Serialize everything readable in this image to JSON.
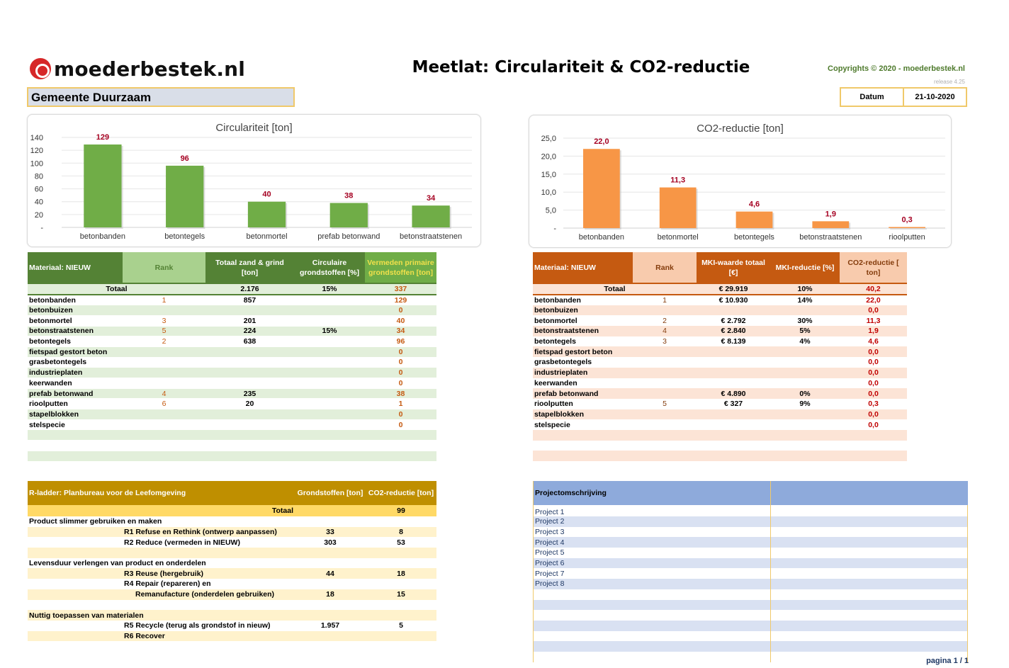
{
  "header": {
    "logo_text": "moederbestek.nl",
    "title": "Meetlat: Circulariteit & CO2-reductie",
    "copyright": "Copyrights © 2020 - moederbestek.nl",
    "release": "release 4.25",
    "gemeente": "Gemeente Duurzaam",
    "datum_label": "Datum",
    "datum_value": "21-10-2020"
  },
  "chart_data": [
    {
      "type": "bar",
      "title": "Circulariteit  [ton]",
      "categories": [
        "betonbanden",
        "betontegels",
        "betonmortel",
        "prefab betonwand",
        "betonstraatstenen"
      ],
      "values": [
        129,
        96,
        40,
        38,
        34
      ],
      "data_labels": [
        "129",
        "96",
        "40",
        "38",
        "34"
      ],
      "ylim": [
        0,
        140
      ],
      "yticks": [
        "-",
        "20",
        "40",
        "60",
        "80",
        "100",
        "120",
        "140"
      ],
      "bar_color": "#70ad47",
      "grid": true
    },
    {
      "type": "bar",
      "title": "CO2-reductie  [ton]",
      "categories": [
        "betonbanden",
        "betonmortel",
        "betontegels",
        "betonstraatstenen",
        "rioolputten"
      ],
      "values": [
        22.0,
        11.3,
        4.6,
        1.9,
        0.3
      ],
      "data_labels": [
        "22,0",
        "11,3",
        "4,6",
        "1,9",
        "0,3"
      ],
      "ylim": [
        0,
        25
      ],
      "yticks": [
        "-",
        "5,0",
        "10,0",
        "15,0",
        "20,0",
        "25,0"
      ],
      "bar_color": "#f79646",
      "grid": true
    }
  ],
  "circ_table": {
    "headers": [
      "Materiaal: NIEUW",
      "Rank",
      "Totaal zand & grind [ton]",
      "Circulaire grondstoffen [%]",
      "Vermeden primaire grondstoffen [ton]"
    ],
    "total": {
      "label": "Totaal",
      "zand": "2.176",
      "circ": "15%",
      "vermeden": "337"
    },
    "rows": [
      {
        "name": "betonbanden",
        "rank": "1",
        "zand": "857",
        "circ": "",
        "vermeden": "129"
      },
      {
        "name": "betonbuizen",
        "rank": "",
        "zand": "",
        "circ": "",
        "vermeden": "0"
      },
      {
        "name": "betonmortel",
        "rank": "3",
        "zand": "201",
        "circ": "",
        "vermeden": "40"
      },
      {
        "name": "betonstraatstenen",
        "rank": "5",
        "zand": "224",
        "circ": "15%",
        "vermeden": "34"
      },
      {
        "name": "betontegels",
        "rank": "2",
        "zand": "638",
        "circ": "",
        "vermeden": "96"
      },
      {
        "name": "fietspad gestort beton",
        "rank": "",
        "zand": "",
        "circ": "",
        "vermeden": "0"
      },
      {
        "name": "grasbetontegels",
        "rank": "",
        "zand": "",
        "circ": "",
        "vermeden": "0"
      },
      {
        "name": "industrieplaten",
        "rank": "",
        "zand": "",
        "circ": "",
        "vermeden": "0"
      },
      {
        "name": "keerwanden",
        "rank": "",
        "zand": "",
        "circ": "",
        "vermeden": "0"
      },
      {
        "name": "prefab betonwand",
        "rank": "4",
        "zand": "235",
        "circ": "",
        "vermeden": "38"
      },
      {
        "name": "rioolputten",
        "rank": "6",
        "zand": "20",
        "circ": "",
        "vermeden": "1"
      },
      {
        "name": "stapelblokken",
        "rank": "",
        "zand": "",
        "circ": "",
        "vermeden": "0"
      },
      {
        "name": "stelspecie",
        "rank": "",
        "zand": "",
        "circ": "",
        "vermeden": "0"
      },
      {
        "name": "",
        "rank": "",
        "zand": "",
        "circ": "",
        "vermeden": ""
      },
      {
        "name": "",
        "rank": "",
        "zand": "",
        "circ": "",
        "vermeden": ""
      },
      {
        "name": "",
        "rank": "",
        "zand": "",
        "circ": "",
        "vermeden": ""
      }
    ]
  },
  "co2_table": {
    "headers": [
      "Materiaal: NIEUW",
      "Rank",
      "MKI-waarde totaal [€]",
      "MKI-reductie [%]",
      "CO2-reductie [ ton]"
    ],
    "total": {
      "label": "Totaal",
      "mki": "€ 29.919",
      "red": "10%",
      "co2": "40,2"
    },
    "rows": [
      {
        "name": "betonbanden",
        "rank": "1",
        "mki": "€ 10.930",
        "red": "14%",
        "co2": "22,0"
      },
      {
        "name": "betonbuizen",
        "rank": "",
        "mki": "",
        "red": "",
        "co2": "0,0"
      },
      {
        "name": "betonmortel",
        "rank": "2",
        "mki": "€ 2.792",
        "red": "30%",
        "co2": "11,3"
      },
      {
        "name": "betonstraatstenen",
        "rank": "4",
        "mki": "€ 2.840",
        "red": "5%",
        "co2": "1,9"
      },
      {
        "name": "betontegels",
        "rank": "3",
        "mki": "€ 8.139",
        "red": "4%",
        "co2": "4,6"
      },
      {
        "name": "fietspad gestort beton",
        "rank": "",
        "mki": "",
        "red": "",
        "co2": "0,0"
      },
      {
        "name": "grasbetontegels",
        "rank": "",
        "mki": "",
        "red": "",
        "co2": "0,0"
      },
      {
        "name": "industrieplaten",
        "rank": "",
        "mki": "",
        "red": "",
        "co2": "0,0"
      },
      {
        "name": "keerwanden",
        "rank": "",
        "mki": "",
        "red": "",
        "co2": "0,0"
      },
      {
        "name": "prefab betonwand",
        "rank": "",
        "mki": "€ 4.890",
        "red": "0%",
        "co2": "0,0"
      },
      {
        "name": "rioolputten",
        "rank": "5",
        "mki": "€ 327",
        "red": "9%",
        "co2": "0,3"
      },
      {
        "name": "stapelblokken",
        "rank": "",
        "mki": "",
        "red": "",
        "co2": "0,0"
      },
      {
        "name": "stelspecie",
        "rank": "",
        "mki": "",
        "red": "",
        "co2": "0,0"
      },
      {
        "name": "",
        "rank": "",
        "mki": "",
        "red": "",
        "co2": ""
      },
      {
        "name": "",
        "rank": "",
        "mki": "",
        "red": "",
        "co2": ""
      },
      {
        "name": "",
        "rank": "",
        "mki": "",
        "red": "",
        "co2": ""
      }
    ]
  },
  "rladder": {
    "headers": [
      "R-ladder: Planbureau voor de Leefomgeving",
      "Grondstoffen [ton]",
      "CO2-reductie [ton]"
    ],
    "total": {
      "label": "Totaal",
      "grond": "",
      "co2": "99"
    },
    "rows": [
      {
        "label": "Product slimmer gebruiken en maken",
        "indent": false,
        "grond": "",
        "co2": ""
      },
      {
        "label": "R1 Refuse en Rethink (ontwerp aanpassen)",
        "indent": true,
        "grond": "33",
        "co2": "8"
      },
      {
        "label": "R2 Reduce (vermeden in NIEUW)",
        "indent": true,
        "grond": "303",
        "co2": "53"
      },
      {
        "label": "",
        "indent": false,
        "grond": "",
        "co2": ""
      },
      {
        "label": "Levensduur verlengen van product en onderdelen",
        "indent": false,
        "grond": "",
        "co2": ""
      },
      {
        "label": "R3 Reuse (hergebruik)",
        "indent": true,
        "grond": "44",
        "co2": "18"
      },
      {
        "label": "R4 Repair (repareren) en",
        "indent": true,
        "grond": "",
        "co2": ""
      },
      {
        "label": "Remanufacture (onderdelen gebruiken)",
        "indent": "deep",
        "grond": "18",
        "co2": "15"
      },
      {
        "label": "",
        "indent": false,
        "grond": "",
        "co2": ""
      },
      {
        "label": "Nuttig toepassen van materialen",
        "indent": false,
        "grond": "",
        "co2": ""
      },
      {
        "label": "R5 Recycle (terug als grondstof in nieuw)",
        "indent": true,
        "grond": "1.957",
        "co2": "5"
      },
      {
        "label": "R6 Recover",
        "indent": true,
        "grond": "",
        "co2": ""
      },
      {
        "label": "",
        "indent": false,
        "grond": "",
        "co2": ""
      }
    ]
  },
  "projects": {
    "header": "Projectomschrijving",
    "items": [
      "Project 1",
      "Project 2",
      "Project 3",
      "Project 4",
      "Project 5",
      "Project 6",
      "Project 7",
      "Project 8",
      "",
      "",
      "",
      "",
      "",
      "",
      ""
    ]
  },
  "footer": {
    "pagina": "pagina 1 / 1"
  }
}
